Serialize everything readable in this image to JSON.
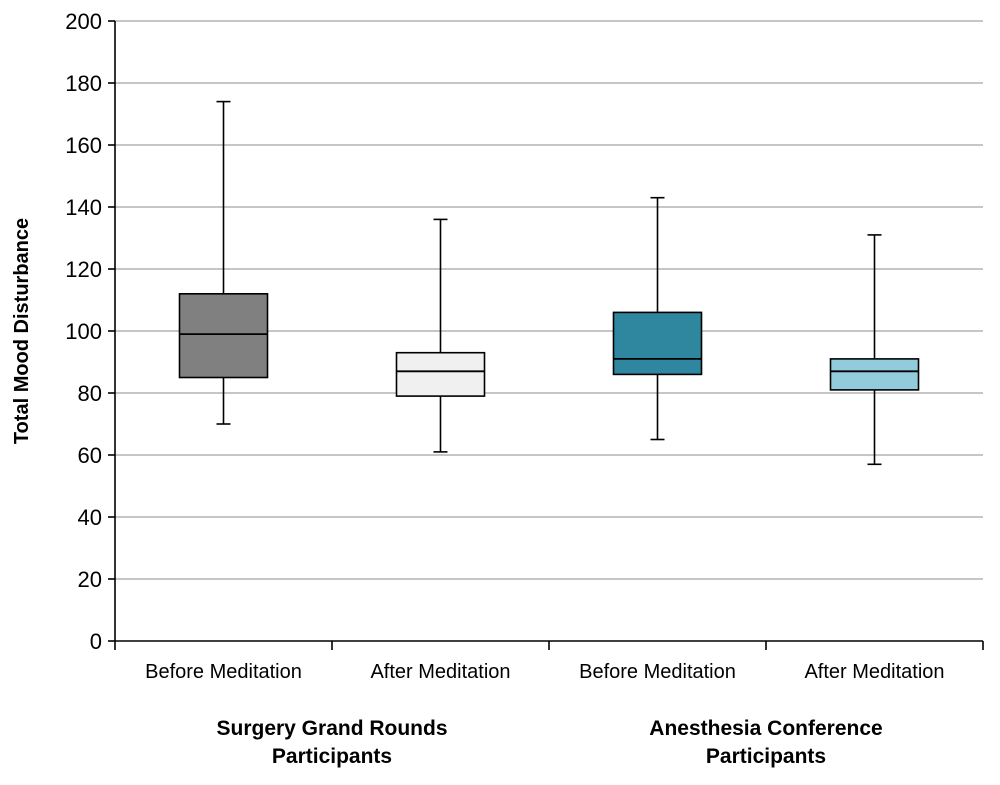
{
  "chart_data": {
    "type": "box",
    "title": "",
    "xlabel": "",
    "ylabel": "Total Mood Disturbance",
    "ylim": [
      0,
      200
    ],
    "yticks": [
      0,
      20,
      40,
      60,
      80,
      100,
      120,
      140,
      160,
      180,
      200
    ],
    "grid": true,
    "categories": [
      "Before Meditation",
      "After Meditation",
      "Before Meditation",
      "After Meditation"
    ],
    "groups": [
      {
        "label_line1": "Surgery Grand Rounds",
        "label_line2": "Participants",
        "categories": [
          0,
          1
        ]
      },
      {
        "label_line1": "Anesthesia Conference",
        "label_line2": "Participants",
        "categories": [
          2,
          3
        ]
      }
    ],
    "boxes": [
      {
        "category": "Before Meditation",
        "group": "Surgery Grand Rounds Participants",
        "min": 70,
        "q1": 85,
        "median": 99,
        "q3": 112,
        "max": 174,
        "color": "#808080"
      },
      {
        "category": "After Meditation",
        "group": "Surgery Grand Rounds Participants",
        "min": 61,
        "q1": 79,
        "median": 87,
        "q3": 93,
        "max": 136,
        "color": "#f0f0f0"
      },
      {
        "category": "Before Meditation",
        "group": "Anesthesia Conference Participants",
        "min": 65,
        "q1": 86,
        "median": 91,
        "q3": 106,
        "max": 143,
        "color": "#2e869f"
      },
      {
        "category": "After Meditation",
        "group": "Anesthesia Conference Participants",
        "min": 57,
        "q1": 81,
        "median": 87,
        "q3": 91,
        "max": 131,
        "color": "#92cbdc"
      }
    ]
  }
}
